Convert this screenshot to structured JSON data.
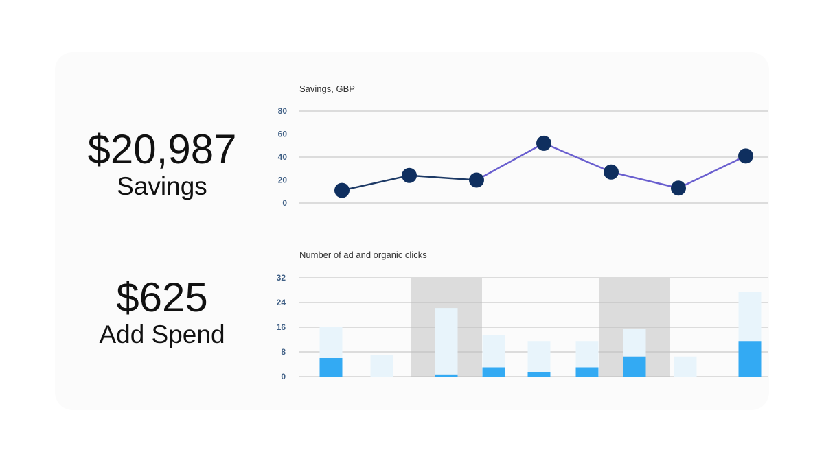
{
  "kpis": {
    "savings": {
      "value": "$20,987",
      "label": "Savings"
    },
    "spend": {
      "value": "$625",
      "label": "Add Spend"
    }
  },
  "chart_data": [
    {
      "type": "line",
      "title": "Savings, GBP",
      "ylim": [
        0,
        80
      ],
      "yticks": [
        0,
        20,
        40,
        60,
        80
      ],
      "grid": true,
      "x": [
        1,
        2,
        3,
        4,
        5,
        6,
        7
      ],
      "values": [
        11,
        24,
        20,
        52,
        27,
        13,
        41
      ],
      "colors": {
        "line_dark": "#1d3a66",
        "line_light": "#6a5fcf",
        "point": "#0f2f5f",
        "grid": "#bdbdbd"
      }
    },
    {
      "type": "bar",
      "title": "Number of ad and organic clicks",
      "ylim": [
        0,
        32
      ],
      "yticks": [
        0,
        8,
        16,
        24,
        32
      ],
      "grid": true,
      "x": [
        1,
        2,
        3,
        4,
        5,
        6,
        7,
        8,
        9
      ],
      "series": [
        {
          "values": [
            6,
            0,
            0.7,
            3,
            1.5,
            3,
            6.5,
            0,
            11.5
          ],
          "color": "#33aaf3"
        },
        {
          "values": [
            10,
            7,
            21.5,
            10.5,
            10,
            8.5,
            9,
            6.5,
            16
          ],
          "color": "#e8f4fb"
        }
      ],
      "highlight_x": [
        3,
        7
      ],
      "colors": {
        "highlight": "#dcdcdc",
        "grid": "#bdbdbd"
      }
    }
  ]
}
